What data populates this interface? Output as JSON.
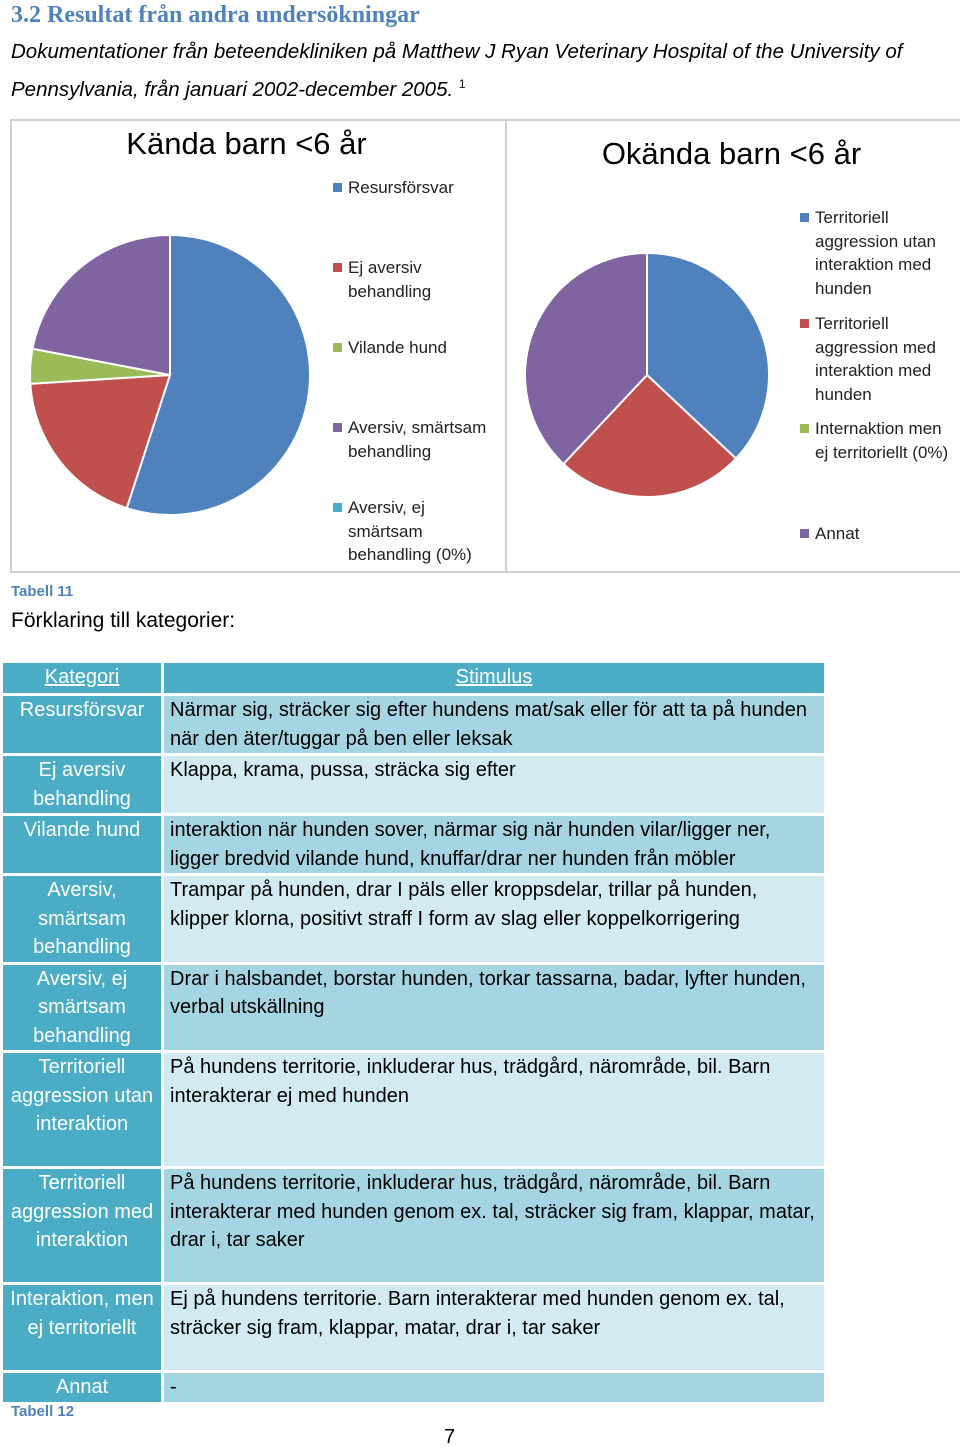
{
  "header": {
    "title": "3.2 Resultat från andra undersökningar",
    "paragraph": "Dokumentationer från beteendekliniken på Matthew J Ryan Veterinary Hospital of the University of Pennsylvania, från januari 2002-december 2005.",
    "footnote_ref": "1"
  },
  "chart_data": [
    {
      "type": "pie",
      "title": "Kända barn <6 år",
      "categories": [
        "Resursförsvar",
        "Ej aversiv behandling",
        "Vilande hund",
        "Aversiv, smärtsam behandling",
        "Aversiv, ej smärtsam behandling (0%)"
      ],
      "values": [
        55,
        19,
        4,
        22,
        0
      ],
      "colors": [
        "#4f81bd",
        "#c0504d",
        "#9bbb59",
        "#8064a2",
        "#4bacc6"
      ]
    },
    {
      "type": "pie",
      "title": "Okända barn <6 år",
      "categories": [
        "Territoriell aggression utan interaktion med hunden",
        "Territoriell aggression med interaktion med hunden",
        "Internaktion men ej territoriellt (0%)",
        "Annat"
      ],
      "values": [
        37,
        25,
        0,
        38
      ],
      "colors": [
        "#4f81bd",
        "#c0504d",
        "#9bbb59",
        "#8064a2"
      ]
    }
  ],
  "caption_11": "Tabell 11",
  "explanation": "Förklaring till kategorier:",
  "table": {
    "header": [
      "Kategori",
      "Stimulus"
    ],
    "rows": [
      [
        "Resursförsvar",
        "Närmar sig, sträcker sig efter hundens mat/sak eller för att ta på hunden när den äter/tuggar på ben eller leksak"
      ],
      [
        "Ej aversiv behandling",
        "Klappa, krama, pussa, sträcka sig efter"
      ],
      [
        "Vilande hund",
        "interaktion när hunden sover, närmar sig när hunden vilar/ligger ner, ligger bredvid vilande hund, knuffar/drar ner hunden från möbler"
      ],
      [
        "Aversiv, smärtsam behandling",
        "Trampar på hunden, drar I päls eller kroppsdelar, trillar på hunden, klipper klorna, positivt straff I form av slag eller koppelkorrigering"
      ],
      [
        "Aversiv, ej smärtsam behandling",
        "Drar i halsbandet, borstar hunden, torkar tassarna, badar, lyfter hunden, verbal utskällning"
      ],
      [
        "Territoriell aggression utan interaktion",
        "På hundens territorie, inkluderar hus, trädgård, närområde, bil. Barn interakterar ej med hunden"
      ],
      [
        "Territoriell aggression med interaktion",
        "På hundens territorie, inkluderar hus, trädgård, närområde, bil. Barn interakterar med hunden genom ex. tal, sträcker sig fram, klappar, matar, drar i, tar saker"
      ],
      [
        "Interaktion, men ej territoriellt",
        "Ej på hundens territorie. Barn interakterar med hunden genom ex. tal, sträcker sig fram, klappar, matar, drar i, tar saker"
      ],
      [
        "Annat",
        "-"
      ]
    ]
  },
  "caption_12": "Tabell 12",
  "page_number": "7"
}
